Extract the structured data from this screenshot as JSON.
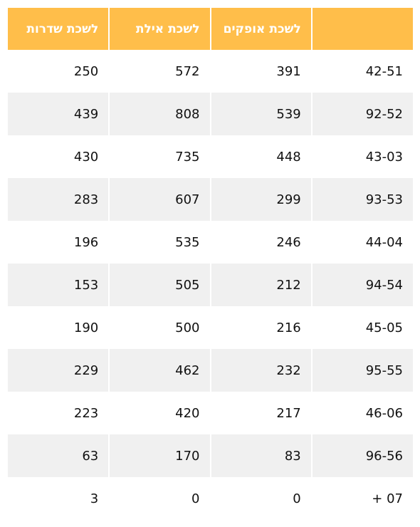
{
  "table": {
    "headers": [
      "לשכת שדרות",
      "לשכת אילת",
      "לשכת אופקים",
      ""
    ],
    "rows": [
      [
        "250",
        "572",
        "391",
        "42-51"
      ],
      [
        "439",
        "808",
        "539",
        "92-52"
      ],
      [
        "430",
        "735",
        "448",
        "43-03"
      ],
      [
        "283",
        "607",
        "299",
        "93-53"
      ],
      [
        "196",
        "535",
        "246",
        "44-04"
      ],
      [
        "153",
        "505",
        "212",
        "94-54"
      ],
      [
        "190",
        "500",
        "216",
        "45-05"
      ],
      [
        "229",
        "462",
        "232",
        "95-55"
      ],
      [
        "223",
        "420",
        "217",
        "46-06"
      ],
      [
        "63",
        "170",
        "83",
        "96-56"
      ],
      [
        "3",
        "0",
        "0",
        "+ 07"
      ]
    ]
  },
  "colors": {
    "header_bg": "#ffbe4a",
    "header_text": "#ffffff",
    "stripe": "#f0f0f0"
  }
}
